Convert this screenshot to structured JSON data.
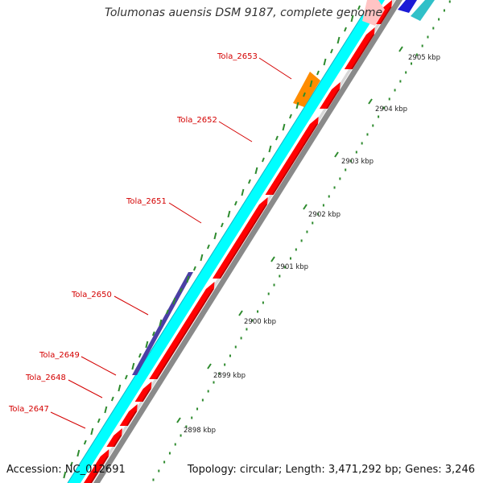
{
  "map_title": "Tolumonas auensis DSM 9187, complete genome",
  "accession_text": "Accession: NC_012691",
  "summary_text": "Topology: circular; Length: 3,471,292 bp; Genes: 3,246",
  "gene_labels": [
    "Tola_2653",
    "Tola_2652",
    "Tola_2651",
    "Tola_2650",
    "Tola_2649",
    "Tola_2648",
    "Tola_2647"
  ],
  "scale_ticks": [
    "2905 kbp",
    "2904 kbp",
    "2903 kbp",
    "2902 kbp",
    "2901 kbp",
    "2900 kbp",
    "2899 kbp",
    "2898 kbp"
  ],
  "colors": {
    "cds_forward": "#00ffff",
    "cds_reverse": "#ff0000",
    "highlight": "#ff8c00",
    "other": "#4b3fa5",
    "gc_dots": "#2e8b2e",
    "backbone": "#808080"
  }
}
